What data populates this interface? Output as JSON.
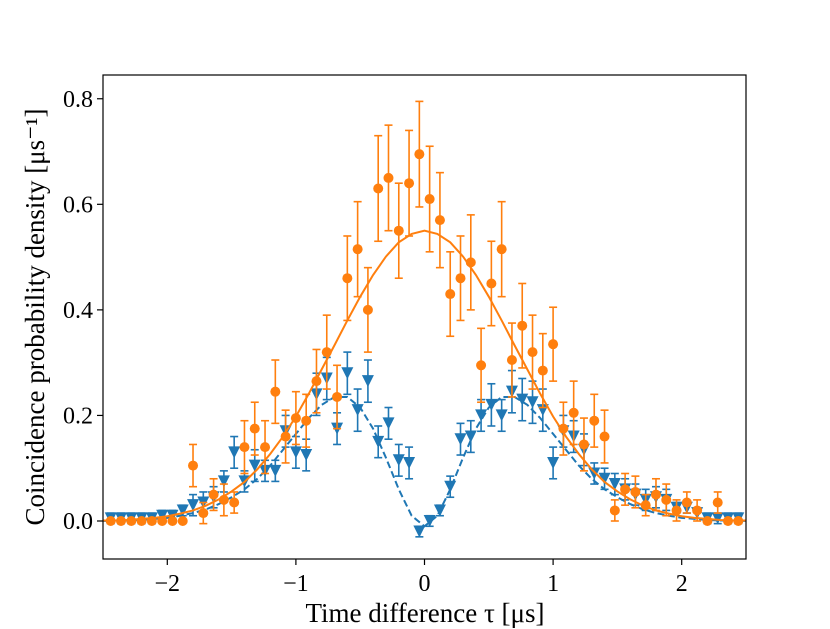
{
  "chart_data": {
    "type": "errorbar",
    "xlabel": "Time difference τ [μs]",
    "ylabel": "Coincidence probability density [μs⁻¹]",
    "xlim": [
      -2.5,
      2.5
    ],
    "ylim": [
      -0.072,
      0.845
    ],
    "xticks": [
      {
        "value": -2,
        "label": "−2"
      },
      {
        "value": -1,
        "label": "−1"
      },
      0,
      1,
      2
    ],
    "yticks": [
      {
        "value": 0,
        "label": "0.0"
      },
      0.2,
      0.4,
      0.6,
      0.8
    ],
    "series": [
      {
        "color": "#1f77b4",
        "marker": "triangle-down",
        "x": [
          -2.44,
          -2.36,
          -2.28,
          -2.2,
          -2.12,
          -2.04,
          -1.96,
          -1.88,
          -1.8,
          -1.72,
          -1.64,
          -1.56,
          -1.48,
          -1.4,
          -1.32,
          -1.24,
          -1.16,
          -1.08,
          -1.0,
          -0.92,
          -0.84,
          -0.76,
          -0.68,
          -0.6,
          -0.52,
          -0.44,
          -0.36,
          -0.28,
          -0.2,
          -0.12,
          -0.04,
          0.04,
          0.12,
          0.2,
          0.28,
          0.36,
          0.44,
          0.52,
          0.6,
          0.68,
          0.76,
          0.84,
          0.92,
          1.0,
          1.08,
          1.16,
          1.24,
          1.32,
          1.4,
          1.48,
          1.56,
          1.64,
          1.72,
          1.8,
          1.88,
          1.96,
          2.04,
          2.12,
          2.2,
          2.28,
          2.36,
          2.44
        ],
        "values": [
          0.005,
          0.005,
          0.005,
          0.005,
          0.005,
          0.01,
          0.01,
          0.02,
          0.03,
          0.035,
          0.045,
          0.075,
          0.13,
          0.075,
          0.105,
          0.095,
          0.095,
          0.17,
          0.13,
          0.125,
          0.24,
          0.27,
          0.175,
          0.28,
          0.21,
          0.265,
          0.15,
          0.185,
          0.115,
          0.11,
          -0.02,
          0.0,
          0.02,
          0.065,
          0.155,
          0.16,
          0.2,
          0.22,
          0.2,
          0.245,
          0.23,
          0.225,
          0.21,
          0.11,
          0.17,
          0.16,
          0.135,
          0.09,
          0.08,
          0.07,
          0.06,
          0.05,
          0.04,
          0.045,
          0.04,
          0.025,
          0.025,
          0.015,
          0.005,
          0.005,
          0.005,
          0.005
        ],
        "errors": [
          0.01,
          0.01,
          0.01,
          0.01,
          0.01,
          0.01,
          0.01,
          0.01,
          0.02,
          0.02,
          0.02,
          0.02,
          0.03,
          0.02,
          0.03,
          0.02,
          0.02,
          0.03,
          0.03,
          0.03,
          0.04,
          0.04,
          0.03,
          0.04,
          0.04,
          0.04,
          0.03,
          0.03,
          0.03,
          0.03,
          0.01,
          0.01,
          0.01,
          0.02,
          0.03,
          0.03,
          0.03,
          0.04,
          0.03,
          0.04,
          0.04,
          0.04,
          0.04,
          0.03,
          0.03,
          0.03,
          0.03,
          0.02,
          0.02,
          0.02,
          0.02,
          0.02,
          0.02,
          0.02,
          0.02,
          0.01,
          0.01,
          0.01,
          0.01,
          0.01,
          0.01,
          0.01
        ]
      },
      {
        "color": "#ff7f0e",
        "marker": "circle",
        "x": [
          -2.44,
          -2.36,
          -2.28,
          -2.2,
          -2.12,
          -2.04,
          -1.96,
          -1.88,
          -1.8,
          -1.72,
          -1.64,
          -1.56,
          -1.48,
          -1.4,
          -1.32,
          -1.24,
          -1.16,
          -1.08,
          -1.0,
          -0.92,
          -0.84,
          -0.76,
          -0.68,
          -0.6,
          -0.52,
          -0.44,
          -0.36,
          -0.28,
          -0.2,
          -0.12,
          -0.04,
          0.04,
          0.12,
          0.2,
          0.28,
          0.36,
          0.44,
          0.52,
          0.6,
          0.68,
          0.76,
          0.84,
          0.92,
          1.0,
          1.08,
          1.16,
          1.24,
          1.32,
          1.4,
          1.48,
          1.56,
          1.64,
          1.72,
          1.8,
          1.88,
          1.96,
          2.04,
          2.12,
          2.2,
          2.28,
          2.36,
          2.44
        ],
        "values": [
          0,
          0,
          0,
          0,
          0,
          0,
          0,
          0,
          0.105,
          0.015,
          0.05,
          0.04,
          0.035,
          0.14,
          0.175,
          0.14,
          0.245,
          0.16,
          0.195,
          0.19,
          0.265,
          0.32,
          0.235,
          0.46,
          0.515,
          0.4,
          0.63,
          0.65,
          0.55,
          0.64,
          0.695,
          0.61,
          0.57,
          0.43,
          0.46,
          0.49,
          0.295,
          0.45,
          0.515,
          0.305,
          0.37,
          0.32,
          0.285,
          0.335,
          0.175,
          0.205,
          0.145,
          0.19,
          0.16,
          0.02,
          0.06,
          0.055,
          0.03,
          0.05,
          0.04,
          0.02,
          0.035,
          0.02,
          0,
          0.035,
          0,
          0
        ],
        "errors": [
          0,
          0,
          0,
          0,
          0,
          0,
          0,
          0,
          0.04,
          0.02,
          0.03,
          0.03,
          0.02,
          0.05,
          0.05,
          0.05,
          0.06,
          0.05,
          0.05,
          0.05,
          0.06,
          0.07,
          0.06,
          0.08,
          0.09,
          0.08,
          0.1,
          0.1,
          0.09,
          0.1,
          0.1,
          0.1,
          0.09,
          0.08,
          0.08,
          0.09,
          0.07,
          0.08,
          0.09,
          0.07,
          0.08,
          0.07,
          0.07,
          0.07,
          0.05,
          0.06,
          0.05,
          0.05,
          0.05,
          0.02,
          0.03,
          0.03,
          0.02,
          0.03,
          0.03,
          0.02,
          0.02,
          0.02,
          0,
          0.02,
          0,
          0
        ]
      }
    ],
    "fits": [
      {
        "color": "#1f77b4",
        "dashed": true,
        "x": [
          -2.5,
          -2.4,
          -2.3,
          -2.2,
          -2.1,
          -2.0,
          -1.9,
          -1.8,
          -1.7,
          -1.6,
          -1.5,
          -1.4,
          -1.3,
          -1.2,
          -1.1,
          -1.0,
          -0.9,
          -0.8,
          -0.7,
          -0.6,
          -0.5,
          -0.4,
          -0.3,
          -0.2,
          -0.1,
          0,
          0.1,
          0.2,
          0.3,
          0.4,
          0.5,
          0.6,
          0.7,
          0.8,
          0.9,
          1.0,
          1.1,
          1.2,
          1.3,
          1.4,
          1.5,
          1.6,
          1.7,
          1.8,
          1.9,
          2.0,
          2.1,
          2.2,
          2.3,
          2.4,
          2.5
        ],
        "values": [
          0,
          0.001,
          0.001,
          0.002,
          0.004,
          0.006,
          0.01,
          0.015,
          0.022,
          0.032,
          0.045,
          0.06,
          0.08,
          0.105,
          0.135,
          0.165,
          0.195,
          0.22,
          0.235,
          0.235,
          0.215,
          0.175,
          0.12,
          0.06,
          0.01,
          -0.01,
          0.01,
          0.06,
          0.12,
          0.175,
          0.215,
          0.235,
          0.235,
          0.22,
          0.195,
          0.165,
          0.135,
          0.105,
          0.08,
          0.06,
          0.045,
          0.032,
          0.022,
          0.015,
          0.01,
          0.006,
          0.004,
          0.002,
          0.001,
          0.001,
          0
        ]
      },
      {
        "color": "#ff7f0e",
        "dashed": false,
        "x": [
          -2.5,
          -2.4,
          -2.3,
          -2.2,
          -2.1,
          -2.0,
          -1.9,
          -1.8,
          -1.7,
          -1.6,
          -1.5,
          -1.4,
          -1.3,
          -1.2,
          -1.1,
          -1.0,
          -0.9,
          -0.8,
          -0.7,
          -0.6,
          -0.5,
          -0.4,
          -0.3,
          -0.2,
          -0.1,
          0,
          0.1,
          0.2,
          0.3,
          0.4,
          0.5,
          0.6,
          0.7,
          0.8,
          0.9,
          1.0,
          1.1,
          1.2,
          1.3,
          1.4,
          1.5,
          1.6,
          1.7,
          1.8,
          1.9,
          2.0,
          2.1,
          2.2,
          2.3,
          2.4,
          2.5
        ],
        "values": [
          0.001,
          0.001,
          0.002,
          0.004,
          0.006,
          0.009,
          0.014,
          0.02,
          0.029,
          0.041,
          0.056,
          0.074,
          0.098,
          0.127,
          0.16,
          0.198,
          0.241,
          0.287,
          0.333,
          0.38,
          0.425,
          0.466,
          0.501,
          0.528,
          0.544,
          0.55,
          0.544,
          0.528,
          0.501,
          0.466,
          0.425,
          0.38,
          0.333,
          0.287,
          0.241,
          0.198,
          0.16,
          0.127,
          0.098,
          0.074,
          0.056,
          0.041,
          0.029,
          0.02,
          0.014,
          0.009,
          0.006,
          0.004,
          0.002,
          0.001,
          0.001
        ]
      }
    ]
  }
}
